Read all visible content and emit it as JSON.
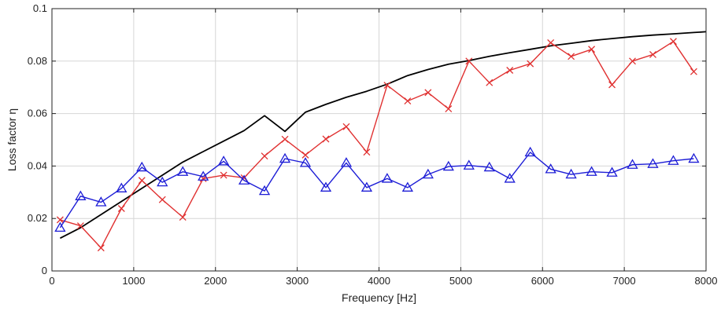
{
  "chart_data": {
    "type": "line",
    "title": "",
    "xlabel": "Frequency [Hz]",
    "ylabel": "Loss factor η",
    "xlim": [
      0,
      8000
    ],
    "ylim": [
      0,
      0.1
    ],
    "xticks": [
      0,
      1000,
      2000,
      3000,
      4000,
      5000,
      6000,
      7000,
      8000
    ],
    "xtick_labels": [
      "0",
      "1000",
      "2000",
      "3000",
      "4000",
      "5000",
      "6000",
      "7000",
      "8000"
    ],
    "yticks": [
      0,
      0.02,
      0.04,
      0.06,
      0.08,
      0.1
    ],
    "ytick_labels": [
      "0",
      "0.02",
      "0.04",
      "0.06",
      "0.08",
      "0.1"
    ],
    "grid": true,
    "legend": null,
    "series": [
      {
        "color": "#000000",
        "marker": "none",
        "x": [
          100,
          350,
          600,
          850,
          1100,
          1350,
          1600,
          1850,
          2100,
          2350,
          2600,
          2850,
          3100,
          3350,
          3600,
          3850,
          4100,
          4350,
          4600,
          4850,
          5100,
          5350,
          5600,
          5850,
          6100,
          6350,
          6600,
          6850,
          7100,
          7350,
          7600,
          7850,
          8000
        ],
        "values": [
          0.0125,
          0.0165,
          0.0215,
          0.0265,
          0.0315,
          0.0365,
          0.0415,
          0.0455,
          0.0495,
          0.0535,
          0.0592,
          0.0532,
          0.0605,
          0.0635,
          0.0662,
          0.0685,
          0.0712,
          0.0745,
          0.0768,
          0.0788,
          0.0802,
          0.0818,
          0.0832,
          0.0845,
          0.0858,
          0.0868,
          0.0878,
          0.0886,
          0.0893,
          0.0899,
          0.0904,
          0.0909,
          0.0912
        ]
      },
      {
        "color": "#e03131",
        "marker": "x",
        "x": [
          100,
          350,
          600,
          850,
          1100,
          1350,
          1600,
          1850,
          2100,
          2350,
          2600,
          2850,
          3100,
          3350,
          3600,
          3850,
          4100,
          4350,
          4600,
          4850,
          5100,
          5350,
          5600,
          5850,
          6100,
          6350,
          6600,
          6850,
          7100,
          7350,
          7600,
          7850
        ],
        "values": [
          0.0195,
          0.0172,
          0.0088,
          0.0238,
          0.0345,
          0.0272,
          0.0205,
          0.0352,
          0.0365,
          0.0355,
          0.0438,
          0.0502,
          0.0442,
          0.0503,
          0.055,
          0.0453,
          0.0708,
          0.0648,
          0.068,
          0.0618,
          0.08,
          0.0718,
          0.0765,
          0.079,
          0.087,
          0.0818,
          0.0845,
          0.071,
          0.08,
          0.0825,
          0.0875,
          0.076
        ]
      },
      {
        "color": "#1c1cd6",
        "marker": "triangle",
        "x": [
          100,
          350,
          600,
          850,
          1100,
          1350,
          1600,
          1850,
          2100,
          2350,
          2600,
          2850,
          3100,
          3350,
          3600,
          3850,
          4100,
          4350,
          4600,
          4850,
          5100,
          5350,
          5600,
          5850,
          6100,
          6350,
          6600,
          6850,
          7100,
          7350,
          7600,
          7850
        ],
        "values": [
          0.0165,
          0.0285,
          0.0262,
          0.0315,
          0.0395,
          0.0338,
          0.0378,
          0.036,
          0.0418,
          0.0345,
          0.0305,
          0.0428,
          0.0412,
          0.0318,
          0.0412,
          0.0318,
          0.0352,
          0.0318,
          0.0368,
          0.0398,
          0.0402,
          0.0395,
          0.0352,
          0.0452,
          0.0388,
          0.0368,
          0.0378,
          0.0375,
          0.0405,
          0.0408,
          0.042,
          0.0428
        ]
      }
    ]
  }
}
